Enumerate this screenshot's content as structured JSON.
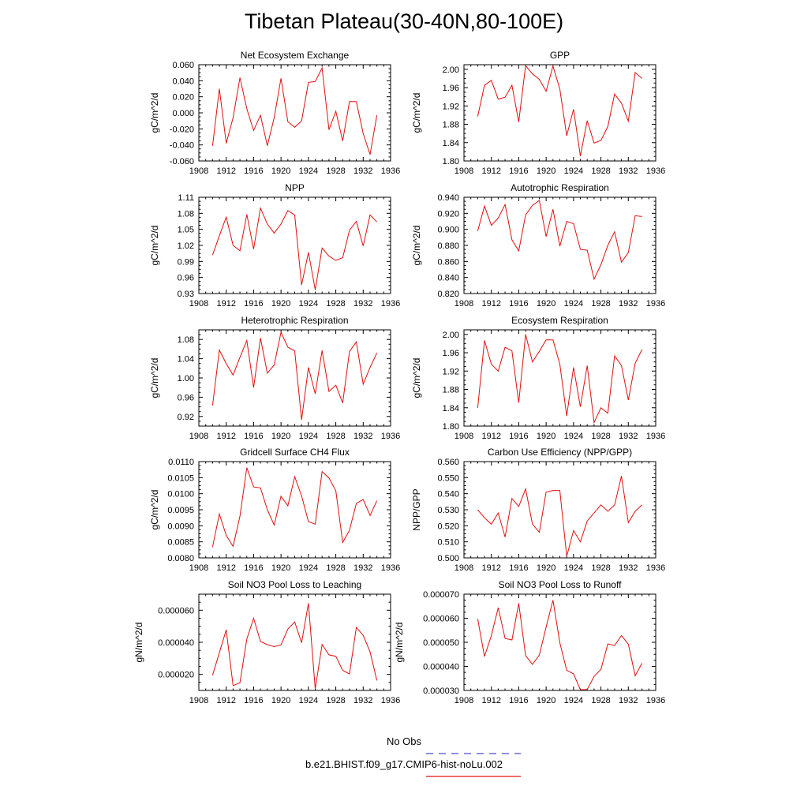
{
  "title": "Tibetan Plateau(30-40N,80-100E)",
  "legend": {
    "entries": [
      {
        "label": "No Obs",
        "color": "#4a4ad8",
        "dash": true
      },
      {
        "label": "b.e21.BHIST.f09_g17.CMIP6-hist-noLu.002",
        "color": "#e01010",
        "dash": false
      }
    ]
  },
  "chart_data": [
    {
      "type": "line",
      "title": "Net Ecosystem Exchange",
      "ylabel": "gC/m^2/d",
      "xlim": [
        1908,
        1936
      ],
      "xticks": [
        1908,
        1912,
        1916,
        1920,
        1924,
        1928,
        1932,
        1936
      ],
      "ylim": [
        -0.06,
        0.06
      ],
      "yticks": [
        "-0.060",
        "-0.040",
        "-0.020",
        "0.000",
        "0.020",
        "0.040",
        "0.060"
      ],
      "x": [
        1910,
        1911,
        1912,
        1913,
        1914,
        1915,
        1916,
        1917,
        1918,
        1919,
        1920,
        1921,
        1922,
        1923,
        1924,
        1925,
        1926,
        1927,
        1928,
        1929,
        1930,
        1931,
        1932,
        1933,
        1934
      ],
      "series": [
        {
          "color": "#e01010",
          "values": [
            -0.041,
            0.03,
            -0.038,
            -0.006,
            0.044,
            0.005,
            -0.022,
            -0.003,
            -0.041,
            -0.006,
            0.043,
            -0.011,
            -0.018,
            -0.01,
            0.038,
            0.039,
            0.056,
            -0.021,
            0.002,
            -0.035,
            0.014,
            0.014,
            -0.026,
            -0.052,
            -0.003
          ]
        }
      ]
    },
    {
      "type": "line",
      "title": "GPP",
      "ylabel": "gC/m^2/d",
      "xlim": [
        1908,
        1936
      ],
      "xticks": [
        1908,
        1912,
        1916,
        1920,
        1924,
        1928,
        1932,
        1936
      ],
      "ylim": [
        1.8,
        2.01
      ],
      "yticks": [
        "1.80",
        "1.84",
        "1.88",
        "1.92",
        "1.96",
        "2.00"
      ],
      "x": [
        1910,
        1911,
        1912,
        1913,
        1914,
        1915,
        1916,
        1917,
        1918,
        1919,
        1920,
        1921,
        1922,
        1923,
        1924,
        1925,
        1926,
        1927,
        1928,
        1929,
        1930,
        1931,
        1932,
        1933,
        1934
      ],
      "series": [
        {
          "color": "#e01010",
          "values": [
            1.897,
            1.965,
            1.976,
            1.935,
            1.939,
            1.965,
            1.885,
            2.008,
            1.99,
            1.978,
            1.952,
            2.007,
            1.957,
            1.855,
            1.913,
            1.811,
            1.888,
            1.839,
            1.845,
            1.875,
            1.946,
            1.926,
            1.887,
            1.993,
            1.98
          ]
        }
      ]
    },
    {
      "type": "line",
      "title": "NPP",
      "ylabel": "gC/m^2/d",
      "xlim": [
        1908,
        1936
      ],
      "xticks": [
        1908,
        1912,
        1916,
        1920,
        1924,
        1928,
        1932,
        1936
      ],
      "ylim": [
        0.93,
        1.11
      ],
      "yticks": [
        "0.93",
        "0.96",
        "0.99",
        "1.02",
        "1.05",
        "1.08",
        "1.11"
      ],
      "x": [
        1910,
        1911,
        1912,
        1913,
        1914,
        1915,
        1916,
        1917,
        1918,
        1919,
        1920,
        1921,
        1922,
        1923,
        1924,
        1925,
        1926,
        1927,
        1928,
        1929,
        1930,
        1931,
        1932,
        1933,
        1934
      ],
      "series": [
        {
          "color": "#e01010",
          "values": [
            1.002,
            1.038,
            1.073,
            1.02,
            1.01,
            1.078,
            1.013,
            1.09,
            1.06,
            1.043,
            1.06,
            1.085,
            1.077,
            0.946,
            1.007,
            0.937,
            1.015,
            1.0,
            0.992,
            0.997,
            1.048,
            1.065,
            1.019,
            1.077,
            1.064
          ]
        }
      ]
    },
    {
      "type": "line",
      "title": "Autotrophic Respiration",
      "ylabel": "gC/m^2/d",
      "xlim": [
        1908,
        1936
      ],
      "xticks": [
        1908,
        1912,
        1916,
        1920,
        1924,
        1928,
        1932,
        1936
      ],
      "ylim": [
        0.82,
        0.94
      ],
      "yticks": [
        "0.820",
        "0.840",
        "0.860",
        "0.880",
        "0.900",
        "0.920",
        "0.940"
      ],
      "x": [
        1910,
        1911,
        1912,
        1913,
        1914,
        1915,
        1916,
        1917,
        1918,
        1919,
        1920,
        1921,
        1922,
        1923,
        1924,
        1925,
        1926,
        1927,
        1928,
        1929,
        1930,
        1931,
        1932,
        1933,
        1934
      ],
      "series": [
        {
          "color": "#e01010",
          "values": [
            0.898,
            0.929,
            0.905,
            0.914,
            0.931,
            0.887,
            0.873,
            0.918,
            0.93,
            0.936,
            0.891,
            0.925,
            0.879,
            0.91,
            0.907,
            0.875,
            0.874,
            0.838,
            0.856,
            0.88,
            0.897,
            0.859,
            0.871,
            0.917,
            0.916
          ]
        }
      ]
    },
    {
      "type": "line",
      "title": "Heterotrophic Respiration",
      "ylabel": "gC/m^2/d",
      "xlim": [
        1908,
        1936
      ],
      "xticks": [
        1908,
        1912,
        1916,
        1920,
        1924,
        1928,
        1932,
        1936
      ],
      "ylim": [
        0.9,
        1.1
      ],
      "yticks": [
        "0.92",
        "0.96",
        "1.00",
        "1.04",
        "1.08"
      ],
      "x": [
        1910,
        1911,
        1912,
        1913,
        1914,
        1915,
        1916,
        1917,
        1918,
        1919,
        1920,
        1921,
        1922,
        1923,
        1924,
        1925,
        1926,
        1927,
        1928,
        1929,
        1930,
        1931,
        1932,
        1933,
        1934
      ],
      "series": [
        {
          "color": "#e01010",
          "values": [
            0.943,
            1.058,
            1.03,
            1.006,
            1.043,
            1.078,
            0.98,
            1.083,
            1.01,
            1.027,
            1.095,
            1.064,
            1.056,
            0.913,
            1.022,
            0.967,
            1.057,
            0.972,
            0.985,
            0.948,
            1.055,
            1.075,
            0.987,
            1.022,
            1.052
          ]
        }
      ]
    },
    {
      "type": "line",
      "title": "Ecosystem Respiration",
      "ylabel": "gC/m^2/d",
      "xlim": [
        1908,
        1936
      ],
      "xticks": [
        1908,
        1912,
        1916,
        1920,
        1924,
        1928,
        1932,
        1936
      ],
      "ylim": [
        1.8,
        2.01
      ],
      "yticks": [
        "1.80",
        "1.84",
        "1.88",
        "1.92",
        "1.96",
        "2.00"
      ],
      "x": [
        1910,
        1911,
        1912,
        1913,
        1914,
        1915,
        1916,
        1917,
        1918,
        1919,
        1920,
        1921,
        1922,
        1923,
        1924,
        1925,
        1926,
        1927,
        1928,
        1929,
        1930,
        1931,
        1932,
        1933,
        1934
      ],
      "series": [
        {
          "color": "#e01010",
          "values": [
            1.84,
            1.987,
            1.935,
            1.92,
            1.972,
            1.964,
            1.851,
            2.0,
            1.94,
            1.963,
            1.988,
            1.988,
            1.935,
            1.822,
            1.928,
            1.842,
            1.932,
            1.808,
            1.84,
            1.828,
            1.953,
            1.932,
            1.857,
            1.937,
            1.967
          ]
        }
      ]
    },
    {
      "type": "line",
      "title": "Gridcell Surface CH4 Flux",
      "ylabel": "gC/m^2/d",
      "xlim": [
        1908,
        1936
      ],
      "xticks": [
        1908,
        1912,
        1916,
        1920,
        1924,
        1928,
        1932,
        1936
      ],
      "ylim": [
        0.008,
        0.011
      ],
      "yticks": [
        "0.0080",
        "0.0085",
        "0.0090",
        "0.0095",
        "0.0100",
        "0.0105",
        "0.0110"
      ],
      "x": [
        1910,
        1911,
        1912,
        1913,
        1914,
        1915,
        1916,
        1917,
        1918,
        1919,
        1920,
        1921,
        1922,
        1923,
        1924,
        1925,
        1926,
        1927,
        1928,
        1929,
        1930,
        1931,
        1932,
        1933,
        1934
      ],
      "series": [
        {
          "color": "#e01010",
          "values": [
            0.00834,
            0.00937,
            0.0087,
            0.00836,
            0.0093,
            0.01081,
            0.01021,
            0.01018,
            0.0095,
            0.00902,
            0.00992,
            0.00962,
            0.01053,
            0.00993,
            0.00913,
            0.00905,
            0.01069,
            0.01049,
            0.01009,
            0.00848,
            0.00886,
            0.0097,
            0.00982,
            0.00932,
            0.00978
          ]
        }
      ]
    },
    {
      "type": "line",
      "title": "Carbon Use Efficiency (NPP/GPP)",
      "ylabel": "NPP/GPP",
      "xlim": [
        1908,
        1936
      ],
      "xticks": [
        1908,
        1912,
        1916,
        1920,
        1924,
        1928,
        1932,
        1936
      ],
      "ylim": [
        0.5,
        0.56
      ],
      "yticks": [
        "0.500",
        "0.510",
        "0.520",
        "0.530",
        "0.540",
        "0.550",
        "0.560"
      ],
      "x": [
        1910,
        1911,
        1912,
        1913,
        1914,
        1915,
        1916,
        1917,
        1918,
        1919,
        1920,
        1921,
        1922,
        1923,
        1924,
        1925,
        1926,
        1927,
        1928,
        1929,
        1930,
        1931,
        1932,
        1933,
        1934
      ],
      "series": [
        {
          "color": "#e01010",
          "values": [
            0.53,
            0.525,
            0.521,
            0.528,
            0.513,
            0.537,
            0.532,
            0.543,
            0.521,
            0.516,
            0.541,
            0.542,
            0.542,
            0.501,
            0.517,
            0.51,
            0.523,
            0.528,
            0.533,
            0.529,
            0.533,
            0.551,
            0.522,
            0.529,
            0.533
          ]
        }
      ]
    },
    {
      "type": "line",
      "title": "Soil NO3 Pool Loss to Leaching",
      "ylabel": "gN/m^2/d",
      "xlim": [
        1908,
        1936
      ],
      "xticks": [
        1908,
        1912,
        1916,
        1920,
        1924,
        1928,
        1932,
        1936
      ],
      "ylim": [
        1e-05,
        7e-05
      ],
      "yticks": [
        "0.000020",
        "0.000040",
        "0.000060"
      ],
      "x": [
        1910,
        1911,
        1912,
        1913,
        1914,
        1915,
        1916,
        1917,
        1918,
        1919,
        1920,
        1921,
        1922,
        1923,
        1924,
        1925,
        1926,
        1927,
        1928,
        1929,
        1930,
        1931,
        1932,
        1933,
        1934
      ],
      "series": [
        {
          "color": "#e01010",
          "values": [
            1.95e-05,
            3.35e-05,
            4.78e-05,
            1.3e-05,
            1.48e-05,
            4.2e-05,
            5.5e-05,
            4.05e-05,
            3.85e-05,
            3.73e-05,
            3.84e-05,
            4.82e-05,
            5.27e-05,
            3.97e-05,
            6.44e-05,
            1.09e-05,
            3.86e-05,
            3.22e-05,
            3.13e-05,
            2.25e-05,
            2.03e-05,
            4.93e-05,
            4.43e-05,
            3.4e-05,
            1.62e-05
          ]
        }
      ]
    },
    {
      "type": "line",
      "title": "Soil NO3 Pool Loss to Runoff",
      "ylabel": "gN/m^2/d",
      "xlim": [
        1908,
        1936
      ],
      "xticks": [
        1908,
        1912,
        1916,
        1920,
        1924,
        1928,
        1932,
        1936
      ],
      "ylim": [
        3e-05,
        7e-05
      ],
      "yticks": [
        "0.000030",
        "0.000040",
        "0.000050",
        "0.000060",
        "0.000070"
      ],
      "x": [
        1910,
        1911,
        1912,
        1913,
        1914,
        1915,
        1916,
        1917,
        1918,
        1919,
        1920,
        1921,
        1922,
        1923,
        1924,
        1925,
        1926,
        1927,
        1928,
        1929,
        1930,
        1931,
        1932,
        1933,
        1934
      ],
      "series": [
        {
          "color": "#e01010",
          "values": [
            5.97e-05,
            4.41e-05,
            5.28e-05,
            6.44e-05,
            5.16e-05,
            5.1e-05,
            6.62e-05,
            4.45e-05,
            4.08e-05,
            4.47e-05,
            5.63e-05,
            6.75e-05,
            4.98e-05,
            3.84e-05,
            3.69e-05,
            3.03e-05,
            3.04e-05,
            3.58e-05,
            3.88e-05,
            4.93e-05,
            4.87e-05,
            5.28e-05,
            4.92e-05,
            3.61e-05,
            4.13e-05
          ]
        }
      ]
    }
  ]
}
